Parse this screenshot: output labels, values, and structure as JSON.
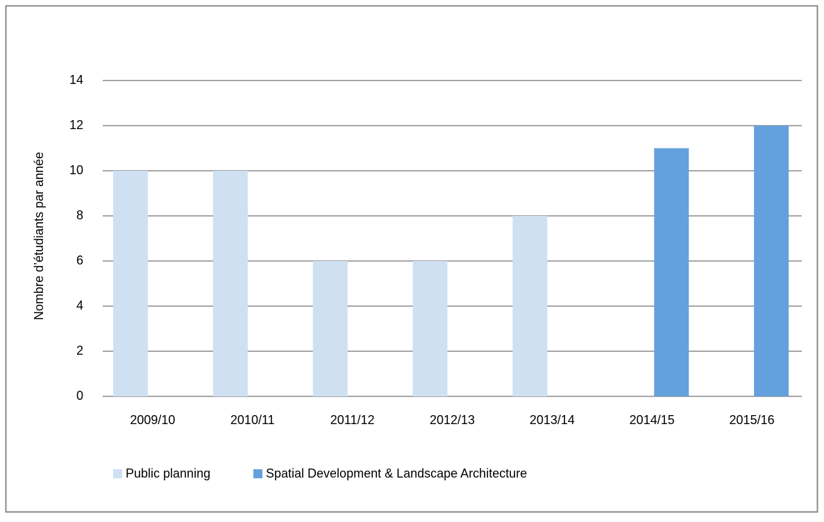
{
  "chart_data": {
    "type": "bar",
    "y_label": "Nombre d’étudiants par année",
    "categories": [
      "2009/10",
      "2010/11",
      "2011/12",
      "2012/13",
      "2013/14",
      "2014/15",
      "2015/16"
    ],
    "series": [
      {
        "name": "Public planning",
        "color": "#cfe0f3",
        "values": [
          10,
          10,
          6,
          6,
          8,
          null,
          null
        ]
      },
      {
        "name": "Spatial Development & Landscape Architecture",
        "color": "#64a0dc",
        "values": [
          null,
          null,
          null,
          null,
          null,
          11,
          12
        ]
      }
    ],
    "ylim": [
      0,
      14
    ],
    "yticks": [
      0,
      2,
      4,
      6,
      8,
      10,
      12,
      14
    ],
    "grid": true,
    "legend": "bottom"
  }
}
